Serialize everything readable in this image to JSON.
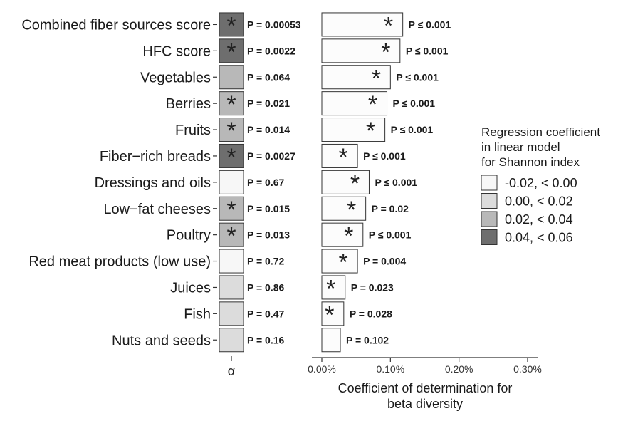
{
  "chart_data": {
    "type": "bar",
    "categories": [
      "Combined fiber sources score",
      "HFC score",
      "Vegetables",
      "Berries",
      "Fruits",
      "Fiber−rich breads",
      "Dressings and oils",
      "Low−fat cheeses",
      "Poultry",
      "Red meat products (low use)",
      "Juices",
      "Fish",
      "Nuts and seeds"
    ],
    "alpha_panel": {
      "xlabel": "α",
      "significant": [
        true,
        true,
        false,
        true,
        true,
        true,
        false,
        true,
        true,
        false,
        false,
        false,
        false
      ],
      "fill_bin": [
        3,
        3,
        2,
        2,
        2,
        3,
        0,
        2,
        2,
        0,
        1,
        1,
        1
      ],
      "p_labels": [
        "P = 0.00053",
        "P = 0.0022",
        "P = 0.064",
        "P = 0.021",
        "P = 0.014",
        "P = 0.0027",
        "P = 0.67",
        "P = 0.015",
        "P = 0.013",
        "P = 0.72",
        "P = 0.86",
        "P = 0.47",
        "P = 0.16"
      ]
    },
    "beta_panel": {
      "xlabel_lines": [
        "Coefficient of determination for",
        "beta diversity"
      ],
      "xlim": [
        0,
        0.3
      ],
      "xticks": [
        0,
        0.1,
        0.2,
        0.3
      ],
      "xtick_labels": [
        "0.00%",
        "0.10%",
        "0.20%",
        "0.30%"
      ],
      "values": [
        0.118,
        0.114,
        0.1,
        0.095,
        0.092,
        0.052,
        0.069,
        0.064,
        0.06,
        0.052,
        0.034,
        0.032,
        0.027
      ],
      "significant": [
        true,
        true,
        true,
        true,
        true,
        true,
        true,
        true,
        true,
        true,
        true,
        true,
        false
      ],
      "p_labels": [
        "P ≤ 0.001",
        "P ≤ 0.001",
        "P ≤ 0.001",
        "P ≤ 0.001",
        "P ≤ 0.001",
        "P ≤ 0.001",
        "P ≤ 0.001",
        "P = 0.02",
        "P ≤ 0.001",
        "P =  0.004",
        "P = 0.023",
        "P = 0.028",
        "P = 0.102"
      ]
    },
    "legend": {
      "title_lines": [
        "Regression coefficient",
        "in linear model",
        "for Shannon index"
      ],
      "placement": "right",
      "items": [
        {
          "label": "-0.02, < 0.00",
          "color": "#f7f7f7"
        },
        {
          "label": "0.00, < 0.02",
          "color": "#dcdcdc"
        },
        {
          "label": "0.02, < 0.04",
          "color": "#b8b8b8"
        },
        {
          "label": "0.04, < 0.06",
          "color": "#6e6e6e"
        }
      ]
    },
    "colors": {
      "beta_bar_fill": "#fcfcfc",
      "stroke": "#333333",
      "text": "#1a1a1a",
      "axis": "#333333"
    },
    "significance_marker": "*"
  }
}
